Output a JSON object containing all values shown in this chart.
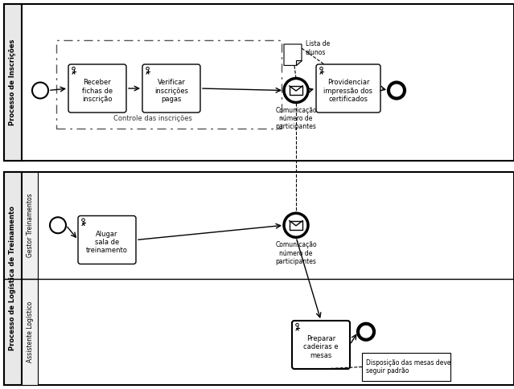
{
  "bg_color": "#ffffff",
  "border_color": "#000000",
  "pool1_label": "Processo de Inscrições",
  "pool2_label": "Processo de Logística de Treinamento",
  "lane2a_label": "Gestor Treinamentos",
  "lane2b_label": "Assistente Logístico",
  "subprocess_label": "Controle das inscrições",
  "task1_label": "Receber\nfichas de\ninscrição",
  "task2_label": "Verificar\ninscrições\npagas",
  "task3_label": "Providenciar\nimpressão dos\ncertificados",
  "task4_label": "Alugar\nsala de\ntreinamento",
  "task5_label": "Preparar\ncadeiras e\nmesas",
  "msg1_label": "Comunicação\nnúmero de\nparticipantes",
  "msg2_label": "Comunicação\nnúmero de\nparticipantes",
  "doc_label": "Lista de\nalunos",
  "annotation_label": "Disposição das mesas deve\nseguir padrão",
  "task_fill": "#ffffff",
  "task_border": "#000000",
  "subprocess_border": "#555555",
  "event_fill": "#ffffff",
  "event_border": "#000000",
  "msg_fill": "#ffffff",
  "msg_border": "#000000"
}
